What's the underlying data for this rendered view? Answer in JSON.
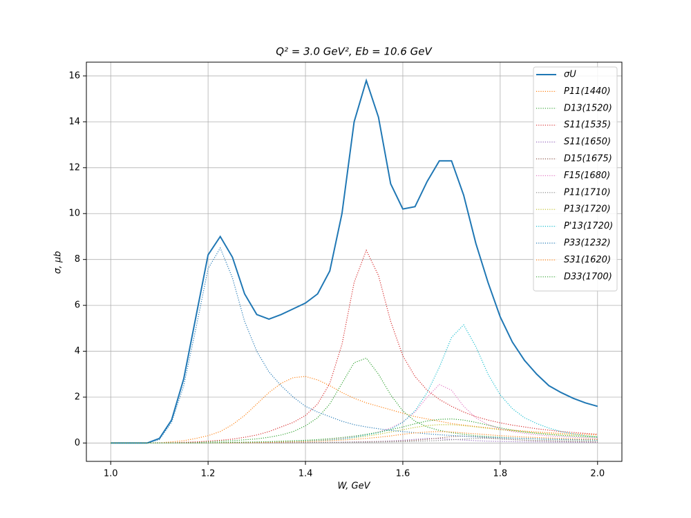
{
  "chart_data": {
    "type": "line",
    "title": "Q² = 3.0 GeV²,  Eb = 10.6 GeV",
    "x_label": "W, GeV",
    "y_label": "σ, μb",
    "x": [
      1.0,
      1.025,
      1.05,
      1.075,
      1.1,
      1.125,
      1.15,
      1.175,
      1.2,
      1.225,
      1.25,
      1.275,
      1.3,
      1.325,
      1.35,
      1.375,
      1.4,
      1.425,
      1.45,
      1.475,
      1.5,
      1.525,
      1.55,
      1.575,
      1.6,
      1.625,
      1.65,
      1.675,
      1.7,
      1.725,
      1.75,
      1.775,
      1.8,
      1.825,
      1.85,
      1.875,
      1.9,
      1.925,
      1.95,
      1.975,
      2.0
    ],
    "xlim": [
      0.95,
      2.05
    ],
    "xticks": [
      {
        "value": 1,
        "label": "1.0"
      },
      1.2,
      1.4,
      1.6,
      1.8,
      {
        "value": 2,
        "label": "2.0"
      }
    ],
    "ylim": [
      -0.8,
      16.6
    ],
    "yticks": [
      0,
      2,
      4,
      6,
      8,
      10,
      12,
      14,
      16
    ],
    "grid": true,
    "legend": "upper right",
    "series": [
      {
        "name": "σU",
        "color": "#1f77b4",
        "style": "solid",
        "values": [
          0,
          0,
          0,
          0,
          0.2,
          1.0,
          2.8,
          5.5,
          8.2,
          9.0,
          8.1,
          6.5,
          5.6,
          5.4,
          5.6,
          5.85,
          6.1,
          6.5,
          7.5,
          10.0,
          14.0,
          15.8,
          14.2,
          11.3,
          10.2,
          10.3,
          11.4,
          12.3,
          12.3,
          10.8,
          8.7,
          7.0,
          5.5,
          4.4,
          3.6,
          3.0,
          2.5,
          2.2,
          1.95,
          1.75,
          1.6
        ]
      },
      {
        "name": "P11(1440)",
        "color": "#ff7f0e",
        "style": "dotted",
        "values": [
          0,
          0,
          0,
          0,
          0.01,
          0.05,
          0.1,
          0.2,
          0.32,
          0.5,
          0.8,
          1.2,
          1.7,
          2.2,
          2.6,
          2.85,
          2.9,
          2.75,
          2.5,
          2.2,
          1.95,
          1.75,
          1.6,
          1.45,
          1.3,
          1.15,
          1.05,
          0.95,
          0.85,
          0.78,
          0.72,
          0.66,
          0.6,
          0.56,
          0.52,
          0.48,
          0.45,
          0.42,
          0.4,
          0.38,
          0.36
        ]
      },
      {
        "name": "D13(1520)",
        "color": "#2ca02c",
        "style": "dotted",
        "values": [
          0,
          0,
          0,
          0,
          0,
          0.01,
          0.02,
          0.04,
          0.06,
          0.08,
          0.1,
          0.14,
          0.18,
          0.25,
          0.35,
          0.5,
          0.75,
          1.1,
          1.7,
          2.6,
          3.5,
          3.7,
          3.0,
          2.1,
          1.4,
          0.95,
          0.7,
          0.55,
          0.45,
          0.38,
          0.32,
          0.28,
          0.25,
          0.22,
          0.2,
          0.18,
          0.16,
          0.15,
          0.14,
          0.13,
          0.12
        ]
      },
      {
        "name": "S11(1535)",
        "color": "#d62728",
        "style": "dotted",
        "values": [
          0,
          0,
          0,
          0,
          0,
          0.01,
          0.03,
          0.05,
          0.08,
          0.12,
          0.17,
          0.25,
          0.35,
          0.5,
          0.7,
          0.9,
          1.2,
          1.7,
          2.6,
          4.3,
          7.0,
          8.4,
          7.3,
          5.3,
          3.8,
          2.9,
          2.3,
          1.9,
          1.6,
          1.35,
          1.15,
          1.0,
          0.88,
          0.78,
          0.7,
          0.62,
          0.56,
          0.5,
          0.46,
          0.42,
          0.38
        ]
      },
      {
        "name": "S11(1650)",
        "color": "#9467bd",
        "style": "dotted",
        "values": [
          0,
          0,
          0,
          0,
          0,
          0,
          0,
          0,
          0,
          0,
          0,
          0,
          0.01,
          0.01,
          0.01,
          0.02,
          0.02,
          0.03,
          0.03,
          0.04,
          0.05,
          0.06,
          0.07,
          0.09,
          0.12,
          0.16,
          0.2,
          0.19,
          0.16,
          0.13,
          0.1,
          0.08,
          0.07,
          0.06,
          0.05,
          0.05,
          0.04,
          0.04,
          0.03,
          0.03,
          0.03
        ]
      },
      {
        "name": "D15(1675)",
        "color": "#8c564b",
        "style": "dotted",
        "values": [
          0,
          0,
          0,
          0,
          0,
          0,
          0,
          0,
          0,
          0,
          0,
          0,
          0.01,
          0.01,
          0.01,
          0.01,
          0.02,
          0.02,
          0.03,
          0.03,
          0.04,
          0.05,
          0.06,
          0.07,
          0.09,
          0.12,
          0.16,
          0.22,
          0.28,
          0.3,
          0.27,
          0.22,
          0.18,
          0.15,
          0.12,
          0.1,
          0.09,
          0.08,
          0.07,
          0.06,
          0.05
        ]
      },
      {
        "name": "F15(1680)",
        "color": "#e377c2",
        "style": "dotted",
        "values": [
          0,
          0,
          0,
          0,
          0,
          0,
          0,
          0,
          0.01,
          0.01,
          0.02,
          0.02,
          0.03,
          0.04,
          0.05,
          0.07,
          0.09,
          0.12,
          0.16,
          0.21,
          0.28,
          0.36,
          0.48,
          0.65,
          0.92,
          1.35,
          2.0,
          2.55,
          2.3,
          1.6,
          1.1,
          0.8,
          0.62,
          0.5,
          0.42,
          0.36,
          0.31,
          0.28,
          0.25,
          0.23,
          0.21
        ]
      },
      {
        "name": "P11(1710)",
        "color": "#7f7f7f",
        "style": "dotted",
        "values": [
          0,
          0,
          0,
          0,
          0,
          0,
          0,
          0,
          0,
          0,
          0,
          0,
          0.01,
          0.01,
          0.01,
          0.01,
          0.01,
          0.02,
          0.02,
          0.02,
          0.03,
          0.03,
          0.04,
          0.05,
          0.06,
          0.07,
          0.09,
          0.11,
          0.14,
          0.17,
          0.2,
          0.2,
          0.18,
          0.15,
          0.13,
          0.11,
          0.1,
          0.09,
          0.08,
          0.07,
          0.06
        ]
      },
      {
        "name": "P13(1720)",
        "color": "#bcbd22",
        "style": "dotted",
        "values": [
          0,
          0,
          0,
          0,
          0,
          0,
          0,
          0,
          0.01,
          0.01,
          0.02,
          0.02,
          0.03,
          0.04,
          0.05,
          0.07,
          0.09,
          0.11,
          0.14,
          0.18,
          0.23,
          0.3,
          0.38,
          0.48,
          0.58,
          0.68,
          0.76,
          0.8,
          0.8,
          0.76,
          0.7,
          0.64,
          0.58,
          0.53,
          0.48,
          0.44,
          0.4,
          0.37,
          0.34,
          0.31,
          0.29
        ]
      },
      {
        "name": "P'13(1720)",
        "color": "#17becf",
        "style": "dotted",
        "values": [
          0,
          0,
          0,
          0,
          0,
          0,
          0,
          0,
          0.01,
          0.01,
          0.02,
          0.02,
          0.03,
          0.04,
          0.05,
          0.06,
          0.08,
          0.1,
          0.13,
          0.17,
          0.25,
          0.35,
          0.45,
          0.6,
          0.9,
          1.4,
          2.2,
          3.3,
          4.6,
          5.15,
          4.2,
          3.0,
          2.1,
          1.5,
          1.1,
          0.85,
          0.65,
          0.5,
          0.4,
          0.32,
          0.26
        ]
      },
      {
        "name": "P33(1232)",
        "color": "#1f77b4",
        "style": "dotted",
        "values": [
          0,
          0,
          0,
          0,
          0.15,
          0.9,
          2.5,
          5.0,
          7.6,
          8.5,
          7.2,
          5.3,
          4.0,
          3.1,
          2.5,
          2.0,
          1.6,
          1.35,
          1.15,
          0.95,
          0.8,
          0.7,
          0.62,
          0.55,
          0.5,
          0.45,
          0.4,
          0.36,
          0.33,
          0.3,
          0.27,
          0.25,
          0.23,
          0.21,
          0.2,
          0.18,
          0.17,
          0.16,
          0.15,
          0.14,
          0.13
        ]
      },
      {
        "name": "S31(1620)",
        "color": "#ff7f0e",
        "style": "dotted",
        "values": [
          0,
          0,
          0,
          0,
          0,
          0,
          0,
          0,
          0.01,
          0.01,
          0.01,
          0.02,
          0.02,
          0.03,
          0.04,
          0.05,
          0.06,
          0.08,
          0.1,
          0.13,
          0.16,
          0.2,
          0.25,
          0.31,
          0.38,
          0.44,
          0.48,
          0.5,
          0.48,
          0.44,
          0.4,
          0.36,
          0.32,
          0.29,
          0.26,
          0.24,
          0.22,
          0.2,
          0.18,
          0.17,
          0.16
        ]
      },
      {
        "name": "D33(1700)",
        "color": "#2ca02c",
        "style": "dotted",
        "values": [
          0,
          0,
          0,
          0,
          0,
          0,
          0,
          0,
          0.01,
          0.02,
          0.03,
          0.04,
          0.05,
          0.06,
          0.08,
          0.1,
          0.12,
          0.15,
          0.19,
          0.24,
          0.3,
          0.38,
          0.47,
          0.58,
          0.7,
          0.84,
          0.96,
          1.03,
          1.05,
          1.0,
          0.9,
          0.78,
          0.66,
          0.56,
          0.48,
          0.42,
          0.37,
          0.33,
          0.3,
          0.27,
          0.25
        ]
      }
    ]
  }
}
